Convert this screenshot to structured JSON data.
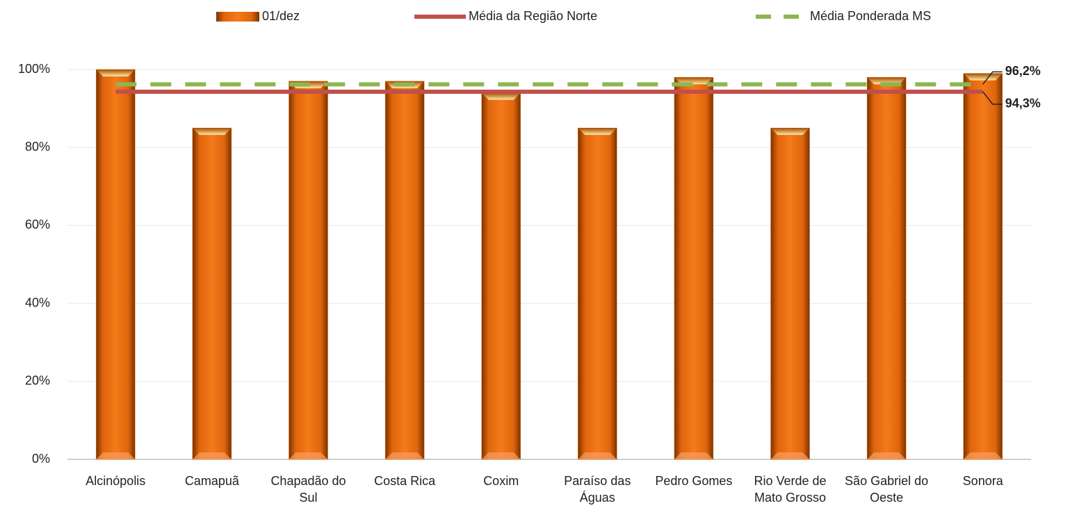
{
  "chart_data": {
    "type": "bar",
    "categories": [
      "Alcinópolis",
      "Camapuã",
      "Chapadão do Sul",
      "Costa Rica",
      "Coxim",
      "Paraíso das Águas",
      "Pedro Gomes",
      "Rio Verde de Mato Grosso",
      "São Gabriel do Oeste",
      "Sonora"
    ],
    "series": [
      {
        "name": "01/dez",
        "color": "#f07010",
        "values": [
          100,
          85,
          97,
          97,
          94,
          85,
          98,
          85,
          98,
          99
        ]
      }
    ],
    "reference_lines": [
      {
        "name": "Média da Região Norte",
        "color": "#c0504d",
        "style": "solid",
        "value": 94.3,
        "value_label": "94,3%"
      },
      {
        "name": "Média Ponderada MS",
        "color": "#8db653",
        "style": "dashed",
        "value": 96.2,
        "value_label": "96,2%"
      }
    ],
    "ylim": [
      0,
      100
    ],
    "yticks": [
      {
        "value": 0,
        "label": "0%"
      },
      {
        "value": 20,
        "label": "20%"
      },
      {
        "value": 40,
        "label": "40%"
      },
      {
        "value": 60,
        "label": "60%"
      },
      {
        "value": 80,
        "label": "80%"
      },
      {
        "value": 100,
        "label": "100%"
      }
    ],
    "grid": true,
    "legend": "top"
  }
}
